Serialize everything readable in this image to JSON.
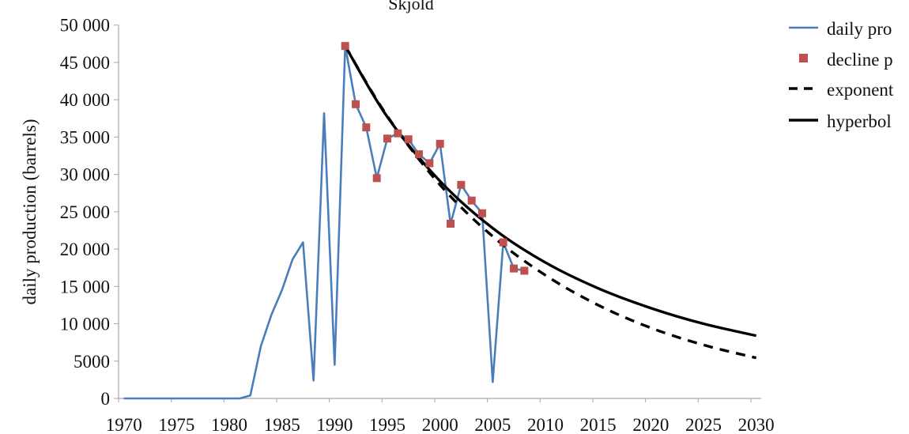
{
  "chart_data": {
    "type": "line",
    "title": "Skjold",
    "xlabel": "",
    "ylabel": "daily production (barrels)",
    "xlim": [
      1970,
      2030
    ],
    "ylim": [
      0,
      50000
    ],
    "x_ticks": [
      1970,
      1975,
      1980,
      1985,
      1990,
      1995,
      2000,
      2005,
      2010,
      2015,
      2020,
      2025,
      2030
    ],
    "y_ticks": [
      0,
      5000,
      10000,
      15000,
      20000,
      25000,
      30000,
      35000,
      40000,
      45000,
      50000
    ],
    "y_tick_labels": [
      "0",
      "5000",
      "10 000",
      "15 000",
      "20 000",
      "25 000",
      "30 000",
      "35 000",
      "40 000",
      "45 000",
      "50 000"
    ],
    "grid": false,
    "legend_placement": "right",
    "series": [
      {
        "name": "daily pro",
        "kind": "line",
        "color": "#4a7ebb",
        "x": [
          1970,
          1971,
          1972,
          1973,
          1974,
          1975,
          1976,
          1977,
          1978,
          1979,
          1980,
          1981,
          1982,
          1983,
          1984,
          1985,
          1986,
          1987,
          1988,
          1989,
          1990,
          1991,
          1992,
          1993,
          1994,
          1995,
          1996,
          1997,
          1998,
          1999,
          2000,
          2001,
          2002,
          2003,
          2004,
          2005,
          2006,
          2007,
          2008
        ],
        "y": [
          0,
          0,
          0,
          0,
          0,
          0,
          0,
          0,
          0,
          0,
          0,
          0,
          400,
          7000,
          11200,
          14500,
          18600,
          20900,
          2400,
          38200,
          4500,
          47200,
          39400,
          36300,
          29500,
          34800,
          35500,
          34700,
          32700,
          31500,
          34100,
          23400,
          28600,
          26500,
          24800,
          2200,
          20900,
          17400,
          17100
        ]
      },
      {
        "name": "decline p",
        "kind": "marker",
        "color": "#c0504d",
        "x": [
          1991,
          1992,
          1993,
          1994,
          1995,
          1996,
          1997,
          1998,
          1999,
          2000,
          2001,
          2002,
          2003,
          2004,
          2006,
          2007,
          2008
        ],
        "y": [
          47200,
          39400,
          36300,
          29500,
          34800,
          35500,
          34700,
          32700,
          31500,
          34100,
          23400,
          28600,
          26500,
          24800,
          20900,
          17400,
          17100
        ]
      },
      {
        "name": "exponent",
        "kind": "dashed",
        "color": "#000000",
        "x": [
          1991,
          1995,
          2000,
          2005,
          2010,
          2015,
          2020,
          2025,
          2030
        ],
        "y": [
          47200,
          37800,
          28600,
          21700,
          16500,
          12500,
          9450,
          7160,
          5430
        ]
      },
      {
        "name": "hyperbol",
        "kind": "solid",
        "color": "#000000",
        "x": [
          1991,
          1995,
          2000,
          2005,
          2010,
          2015,
          2020,
          2025,
          2030
        ],
        "y": [
          47200,
          37700,
          29100,
          22800,
          18200,
          14750,
          12100,
          10000,
          8400
        ]
      }
    ]
  }
}
